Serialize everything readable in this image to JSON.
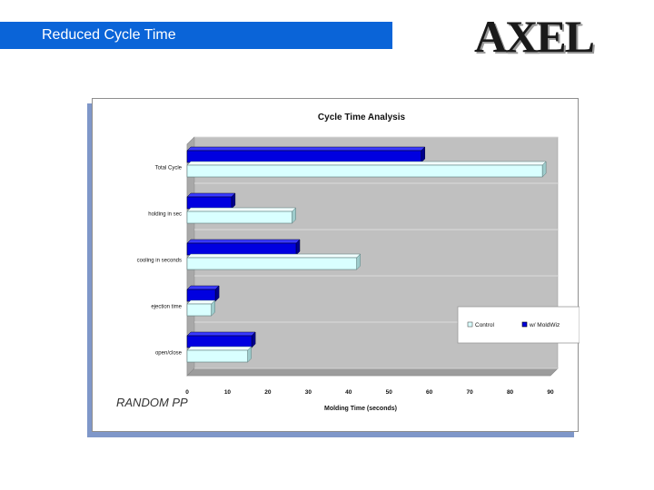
{
  "header": {
    "title": "Reduced Cycle Time",
    "logo_text": "AXEL"
  },
  "note": "RANDOM PP",
  "colors": {
    "title_bar": "#0a64d8",
    "control": "#d9ffff",
    "moldwiz": "#0000e0",
    "plot_bg": "#c0c0c0"
  },
  "chart_data": {
    "type": "bar",
    "orientation": "horizontal",
    "title": "Cycle Time Analysis",
    "xlabel": "Molding Time (seconds)",
    "ylabel": "",
    "xlim": [
      0,
      90
    ],
    "xticks": [
      0,
      10,
      20,
      30,
      40,
      50,
      60,
      70,
      80,
      90
    ],
    "categories": [
      "Total Cycle",
      "holding in sec",
      "cooling in seconds",
      "ejection time",
      "open/close"
    ],
    "series": [
      {
        "name": "w/ MoldWiz",
        "values": [
          58,
          11,
          27,
          7,
          16
        ]
      },
      {
        "name": "Control",
        "values": [
          88,
          26,
          42,
          6,
          15
        ]
      }
    ],
    "legend": [
      "Control",
      "w/ MoldWiz"
    ],
    "legend_position": "right",
    "grid": true
  }
}
